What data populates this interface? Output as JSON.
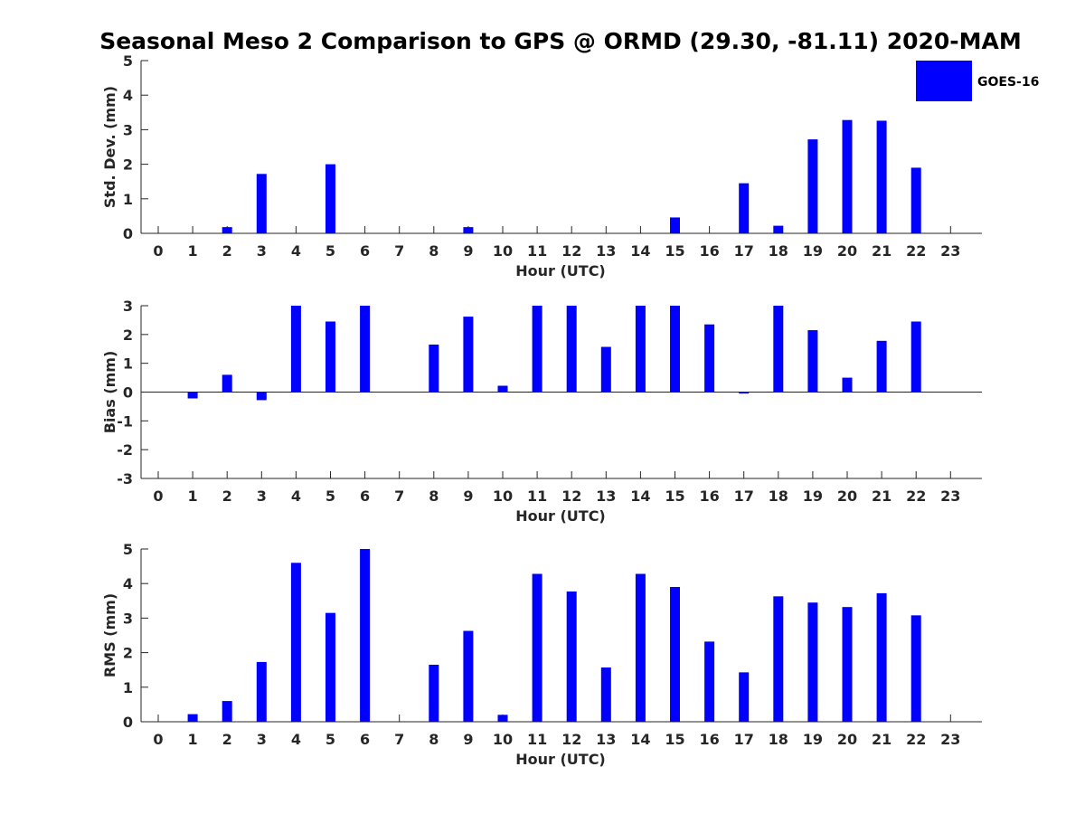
{
  "title": "Seasonal Meso 2 Comparison to GPS @ ORMD (29.30, -81.11) 2020-MAM",
  "legend": {
    "label": "GOES-16",
    "color": "#0000ff"
  },
  "chart_data": [
    {
      "type": "bar",
      "name": "std-dev",
      "xlabel": "Hour (UTC)",
      "ylabel": "Std. Dev. (mm)",
      "ylim": [
        0,
        5
      ],
      "yticks": [
        0,
        1,
        2,
        3,
        4,
        5
      ],
      "categories": [
        "0",
        "1",
        "2",
        "3",
        "4",
        "5",
        "6",
        "7",
        "8",
        "9",
        "10",
        "11",
        "12",
        "13",
        "14",
        "15",
        "16",
        "17",
        "18",
        "19",
        "20",
        "21",
        "22",
        "23"
      ],
      "series": [
        {
          "name": "GOES-16",
          "color": "#0000ff",
          "values": [
            0,
            0,
            0.18,
            1.72,
            0,
            2.0,
            0,
            0,
            0,
            0.18,
            0,
            0,
            0,
            0,
            0,
            0.46,
            0,
            1.45,
            0.22,
            2.72,
            3.28,
            3.26,
            1.9,
            0
          ]
        }
      ]
    },
    {
      "type": "bar",
      "name": "bias",
      "xlabel": "Hour (UTC)",
      "ylabel": "Bias (mm)",
      "ylim": [
        -3,
        3
      ],
      "yticks": [
        -3,
        -2,
        -1,
        0,
        1,
        2,
        3
      ],
      "zero_line": true,
      "categories": [
        "0",
        "1",
        "2",
        "3",
        "4",
        "5",
        "6",
        "7",
        "8",
        "9",
        "10",
        "11",
        "12",
        "13",
        "14",
        "15",
        "16",
        "17",
        "18",
        "19",
        "20",
        "21",
        "22",
        "23"
      ],
      "series": [
        {
          "name": "GOES-16",
          "color": "#0000ff",
          "values": [
            0,
            -0.22,
            0.6,
            -0.28,
            3.0,
            2.45,
            3.0,
            0,
            1.65,
            2.62,
            0.22,
            3.0,
            3.0,
            1.57,
            3.0,
            3.0,
            2.35,
            -0.05,
            3.0,
            2.15,
            0.5,
            1.78,
            2.45,
            0
          ]
        }
      ]
    },
    {
      "type": "bar",
      "name": "rms",
      "xlabel": "Hour (UTC)",
      "ylabel": "RMS (mm)",
      "ylim": [
        0,
        5
      ],
      "yticks": [
        0,
        1,
        2,
        3,
        4,
        5
      ],
      "categories": [
        "0",
        "1",
        "2",
        "3",
        "4",
        "5",
        "6",
        "7",
        "8",
        "9",
        "10",
        "11",
        "12",
        "13",
        "14",
        "15",
        "16",
        "17",
        "18",
        "19",
        "20",
        "21",
        "22",
        "23"
      ],
      "series": [
        {
          "name": "GOES-16",
          "color": "#0000ff",
          "values": [
            0,
            0.22,
            0.6,
            1.73,
            4.6,
            3.15,
            5.0,
            0,
            1.65,
            2.63,
            0.2,
            4.28,
            3.77,
            1.57,
            4.28,
            3.9,
            2.32,
            1.43,
            3.63,
            3.45,
            3.32,
            3.72,
            3.08,
            0
          ]
        }
      ]
    }
  ]
}
